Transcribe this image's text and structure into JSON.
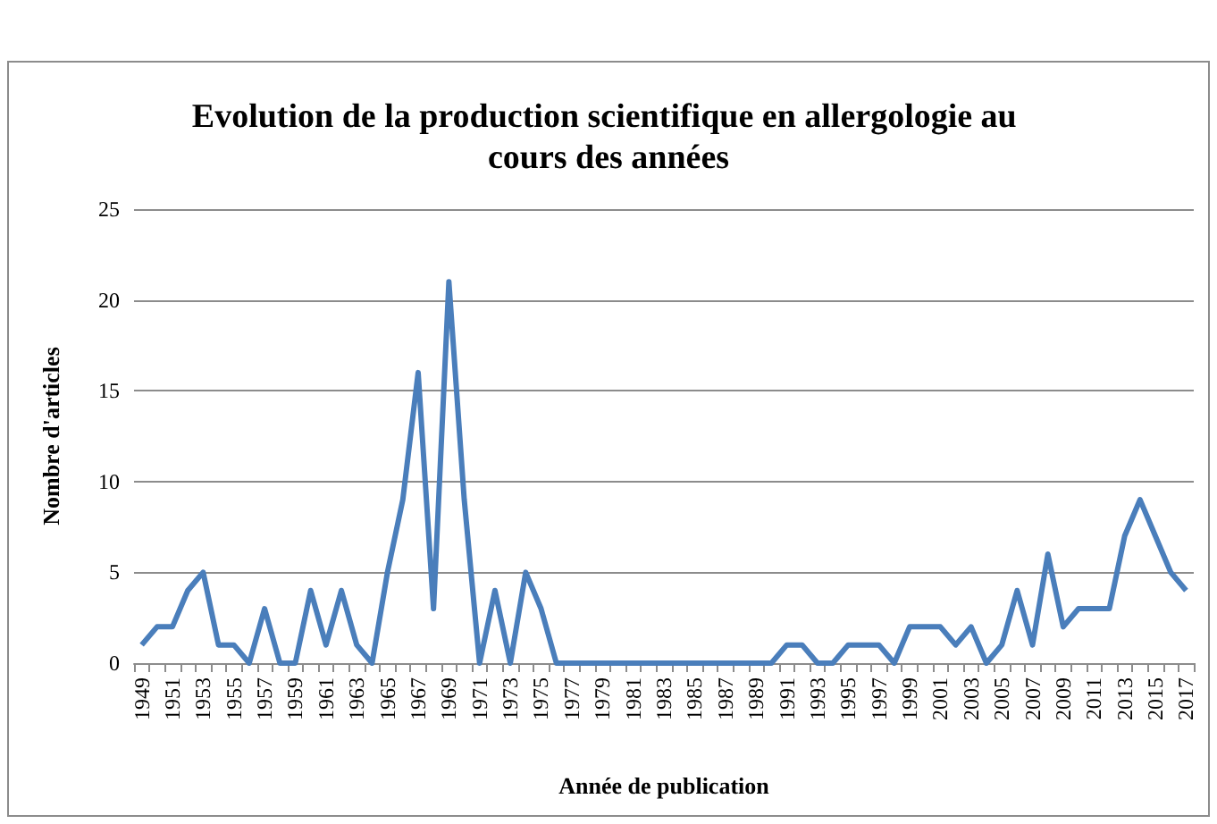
{
  "chart_data": {
    "type": "line",
    "title": "Evolution de la production scientifique en allergologie au cours des années",
    "xlabel": "Année de publication",
    "ylabel": "Nombre d'articles",
    "categories": [
      "1949",
      null,
      "1951",
      null,
      "1953",
      null,
      "1955",
      null,
      "1957",
      null,
      "1959",
      null,
      "1961",
      null,
      "1963",
      null,
      "1965",
      null,
      "1967",
      null,
      "1969",
      null,
      "1971",
      null,
      "1973",
      null,
      "1975",
      null,
      "1977",
      null,
      "1979",
      null,
      "1981",
      null,
      "1983",
      null,
      "1985",
      null,
      "1987",
      null,
      "1989",
      null,
      "1991",
      null,
      "1993",
      null,
      "1995",
      null,
      "1997",
      null,
      "1999",
      null,
      "2001",
      null,
      "2003",
      null,
      "2005",
      null,
      "2007",
      null,
      "2009",
      null,
      "2011",
      null,
      "2013",
      null,
      "2015",
      null,
      "2017"
    ],
    "series": [
      {
        "color": "#4a7ebb",
        "values": [
          1,
          2,
          2,
          4,
          5,
          1,
          1,
          0,
          3,
          0,
          0,
          4,
          1,
          4,
          1,
          0,
          5,
          9,
          16,
          3,
          21,
          9,
          0,
          4,
          0,
          5,
          3,
          0,
          0,
          0,
          0,
          0,
          0,
          0,
          0,
          0,
          0,
          0,
          0,
          0,
          0,
          0,
          1,
          1,
          0,
          0,
          1,
          1,
          1,
          0,
          2,
          2,
          2,
          1,
          2,
          0,
          1,
          4,
          1,
          6,
          2,
          3,
          3,
          3,
          7,
          9,
          7,
          5,
          4
        ]
      }
    ],
    "ylim": [
      0,
      25
    ],
    "yticks": [
      0,
      5,
      10,
      15,
      20,
      25
    ],
    "grid": "y",
    "marker": "none",
    "line_style": "solid"
  }
}
